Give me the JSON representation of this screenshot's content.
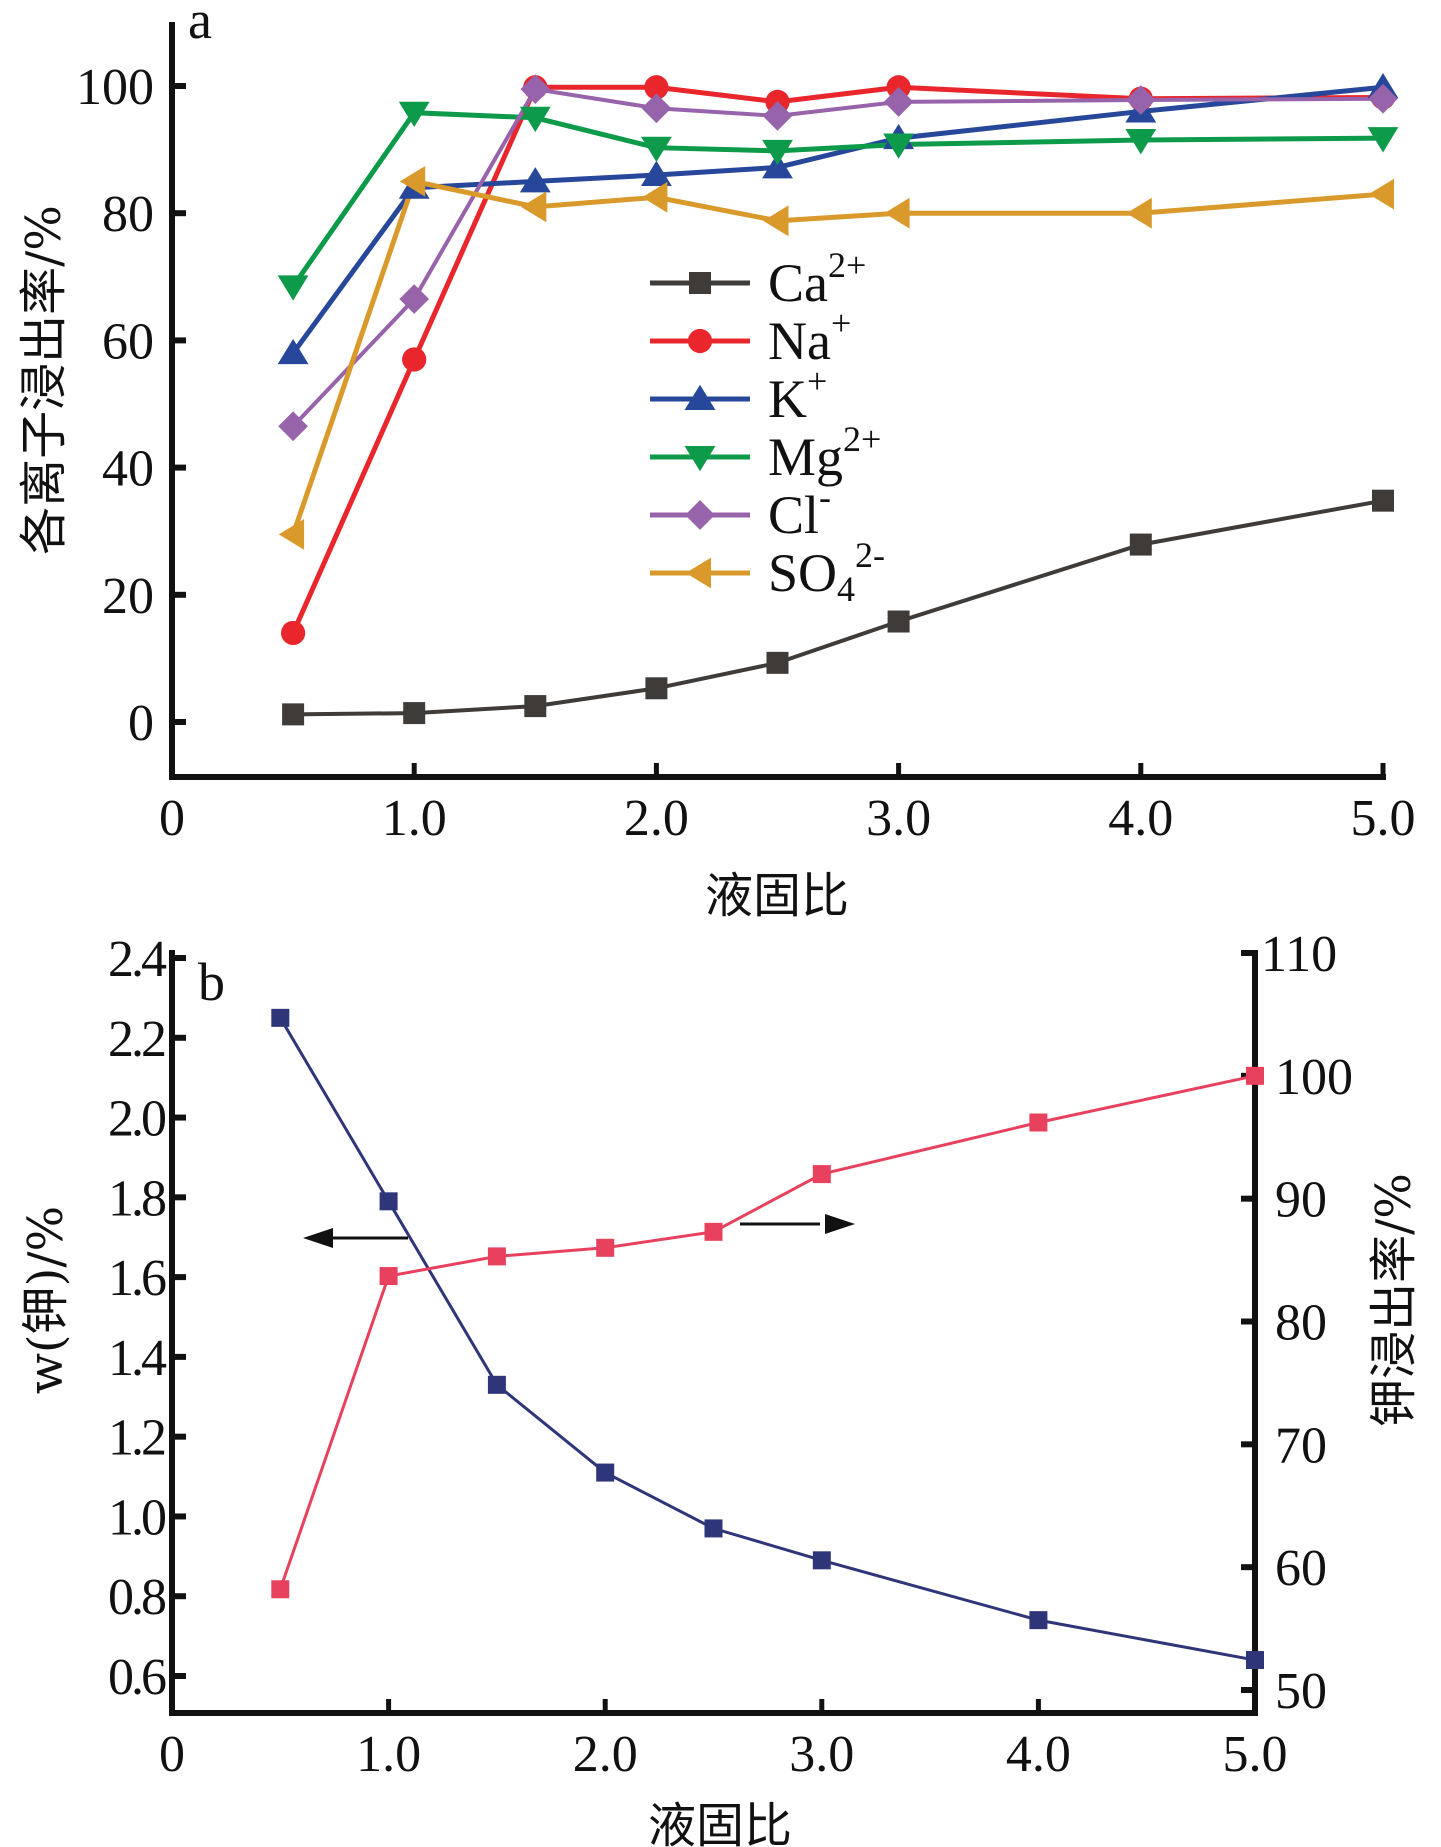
{
  "chart_data": [
    {
      "panel": "a",
      "type": "line",
      "title": "",
      "xlabel": "液固比",
      "ylabel": "各离子浸出率/%",
      "xlim": [
        0,
        5.0
      ],
      "ylim": [
        -10,
        108
      ],
      "x_ticks": [
        "0",
        "1.0",
        "2.0",
        "3.0",
        "4.0",
        "5.0"
      ],
      "x_tick_values": [
        0,
        1,
        2,
        3,
        4,
        5
      ],
      "y_ticks": [
        "0",
        "20",
        "40",
        "60",
        "80",
        "100"
      ],
      "y_tick_values": [
        0,
        20,
        40,
        60,
        80,
        100
      ],
      "legend_placement": "center",
      "x": [
        0.5,
        1.0,
        1.5,
        2.0,
        2.5,
        3.0,
        4.0,
        5.0
      ],
      "series": [
        {
          "name": "Ca",
          "sup": "2+",
          "sub": "",
          "color": "#3f3b38",
          "marker": "square",
          "values": [
            1.2,
            1.4,
            2.5,
            5.3,
            9.3,
            15.8,
            27.9,
            34.8
          ]
        },
        {
          "name": "Na",
          "sup": "+",
          "sub": "",
          "color": "#e8262b",
          "marker": "circle",
          "values": [
            14.0,
            57.0,
            99.8,
            99.8,
            97.5,
            99.8,
            98.0,
            98.2
          ]
        },
        {
          "name": "K",
          "sup": "+",
          "sub": "",
          "color": "#27479a",
          "marker": "triangle-up",
          "values": [
            58.0,
            84.0,
            85.0,
            86.0,
            87.2,
            91.8,
            96.0,
            99.8
          ]
        },
        {
          "name": "Mg",
          "sup": "2+",
          "sub": "",
          "color": "#0d9a4a",
          "marker": "triangle-down",
          "values": [
            68.5,
            95.8,
            95.0,
            90.3,
            89.8,
            90.8,
            91.5,
            91.8
          ]
        },
        {
          "name": "Cl",
          "sup": "-",
          "sub": "",
          "color": "#9763ab",
          "marker": "diamond",
          "values": [
            46.5,
            66.5,
            99.5,
            96.5,
            95.3,
            97.5,
            97.8,
            98.0
          ]
        },
        {
          "name": "SO",
          "sup": "2-",
          "sub": "4",
          "color": "#d99a2b",
          "marker": "triangle-left",
          "values": [
            29.5,
            85.0,
            81.0,
            82.5,
            78.8,
            80.0,
            80.0,
            83.0
          ]
        }
      ],
      "annotations": [
        "a"
      ]
    },
    {
      "panel": "b",
      "type": "line",
      "title": "",
      "xlabel": "液固比",
      "ylabel_left": "w(钾)/%",
      "ylabel_right": "钾浸出率/%",
      "xlim": [
        0,
        5.0
      ],
      "ylim_left": [
        0.5,
        2.4
      ],
      "ylim_right": [
        50,
        110
      ],
      "x_ticks": [
        "0",
        "1.0",
        "2.0",
        "3.0",
        "4.0",
        "5.0"
      ],
      "x_tick_values": [
        0,
        1,
        2,
        3,
        4,
        5
      ],
      "y_left_ticks": [
        "0.6",
        "0.8",
        "1.0",
        "1.2",
        "1.4",
        "1.6",
        "1.8",
        "2.0",
        "2.2",
        "2.4"
      ],
      "y_left_tick_values": [
        0.6,
        0.8,
        1.0,
        1.2,
        1.4,
        1.6,
        1.8,
        2.0,
        2.2,
        2.4
      ],
      "y_right_ticks": [
        "50",
        "60",
        "70",
        "80",
        "90",
        "100",
        "110"
      ],
      "y_right_tick_values": [
        50,
        60,
        70,
        80,
        90,
        100,
        110
      ],
      "x": [
        0.5,
        1.0,
        1.5,
        2.0,
        2.5,
        3.0,
        4.0,
        5.0
      ],
      "series": [
        {
          "name": "w(钾)",
          "axis": "left",
          "color": "#2e3579",
          "marker": "square",
          "values": [
            2.25,
            1.79,
            1.33,
            1.11,
            0.97,
            0.89,
            0.74,
            0.64
          ]
        },
        {
          "name": "钾浸出率",
          "axis": "right",
          "color": "#e8415e",
          "marker": "square",
          "values": [
            58.2,
            83.7,
            85.3,
            86.0,
            87.3,
            92.0,
            96.2,
            100.0
          ]
        }
      ],
      "annotations": [
        "b"
      ],
      "arrows": [
        {
          "direction": "left",
          "refers_to": "w(钾)"
        },
        {
          "direction": "right",
          "refers_to": "钾浸出率"
        }
      ]
    }
  ]
}
